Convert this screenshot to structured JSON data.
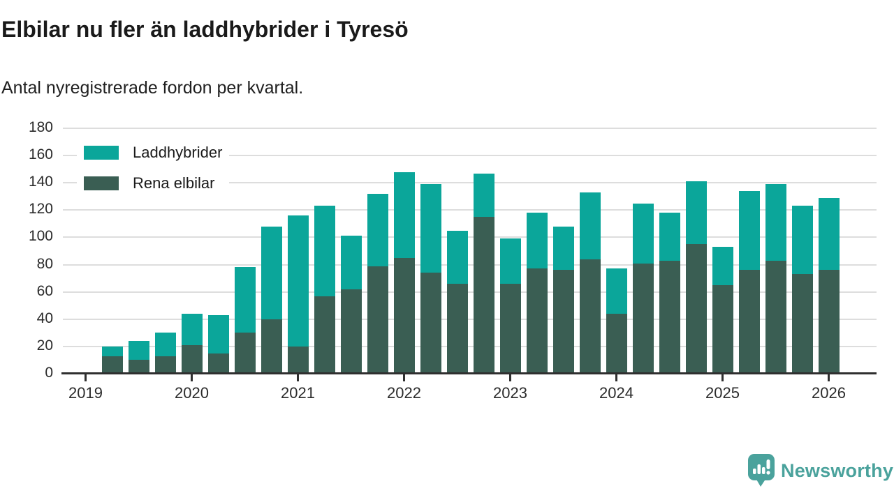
{
  "header": {
    "title": "Elbilar nu fler än laddhybrider i Tyresö",
    "subtitle": "Antal nyregistrerade fordon per kvartal."
  },
  "chart_data": {
    "type": "bar",
    "stacked": true,
    "title": "Elbilar nu fler än laddhybrider i Tyresö",
    "subtitle": "Antal nyregistrerade fordon per kvartal.",
    "x": [
      "2019-Q2",
      "2019-Q3",
      "2019-Q4",
      "2020-Q1",
      "2020-Q2",
      "2020-Q3",
      "2020-Q4",
      "2021-Q1",
      "2021-Q2",
      "2021-Q3",
      "2021-Q4",
      "2022-Q1",
      "2022-Q2",
      "2022-Q3",
      "2022-Q4",
      "2023-Q1",
      "2023-Q2",
      "2023-Q3",
      "2023-Q4",
      "2024-Q1",
      "2024-Q2",
      "2024-Q3",
      "2024-Q4",
      "2025-Q1",
      "2025-Q2",
      "2025-Q3",
      "2025-Q4",
      "2026-Q1"
    ],
    "x_tick_labels": [
      "2019",
      "2020",
      "2021",
      "2022",
      "2023",
      "2024",
      "2025",
      "2026"
    ],
    "y_ticks": [
      0,
      20,
      40,
      60,
      80,
      100,
      120,
      140,
      160,
      180
    ],
    "ylim": [
      0,
      180
    ],
    "grid": true,
    "legend_position": "top-left",
    "stack_order_bottom_to_top": [
      "Rena elbilar",
      "Laddhybrider"
    ],
    "series": [
      {
        "name": "Laddhybrider",
        "color": "#0ba69a",
        "values": [
          7,
          14,
          17,
          23,
          28,
          48,
          68,
          96,
          66,
          39,
          53,
          63,
          65,
          39,
          32,
          33,
          41,
          32,
          49,
          33,
          44,
          35,
          46,
          28,
          58,
          56,
          50,
          53
        ]
      },
      {
        "name": "Rena elbilar",
        "color": "#3a5e53",
        "values": [
          13,
          10,
          13,
          21,
          15,
          30,
          40,
          20,
          57,
          62,
          79,
          85,
          74,
          66,
          115,
          66,
          77,
          76,
          84,
          44,
          81,
          83,
          95,
          65,
          76,
          83,
          73,
          76
        ]
      }
    ]
  },
  "branding": {
    "logo_text": "Newsworthy",
    "logo_color": "#4aa29c"
  }
}
